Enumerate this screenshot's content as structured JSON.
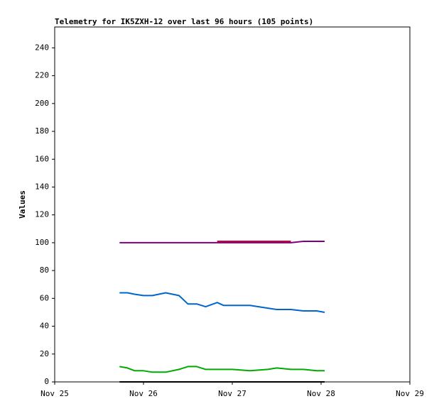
{
  "chart_data": {
    "type": "line",
    "title": "Telemetry for IK5ZXH-12 over last 96 hours (105 points)",
    "y_label": "Values",
    "x": [
      0.73,
      0.82,
      0.9,
      1.0,
      1.1,
      1.25,
      1.4,
      1.5,
      1.6,
      1.7,
      1.83,
      1.9,
      2.0,
      2.2,
      2.4,
      2.5,
      2.66,
      2.8,
      2.95,
      3.04
    ],
    "series": [
      {
        "color": "#800080",
        "values": [
          100,
          100,
          100,
          100,
          100,
          100,
          100,
          100,
          100,
          100,
          100,
          100,
          100,
          100,
          100,
          100,
          100,
          101,
          101,
          101
        ]
      },
      {
        "color": "#cc0033",
        "values": [
          null,
          null,
          null,
          null,
          null,
          null,
          null,
          null,
          null,
          null,
          101,
          101,
          101,
          101,
          101,
          101,
          101,
          null,
          null,
          null
        ]
      },
      {
        "color": "#0066cc",
        "values": [
          64,
          64,
          63,
          62,
          62,
          64,
          62,
          56,
          56,
          54,
          57,
          55,
          55,
          55,
          53,
          52,
          52,
          51,
          51,
          50
        ]
      },
      {
        "color": "#00aa00",
        "values": [
          11,
          10,
          8,
          8,
          7,
          7,
          9,
          11,
          11,
          9,
          9,
          9,
          9,
          8,
          9,
          10,
          9,
          9,
          8,
          8
        ]
      },
      {
        "color": "#000000",
        "values": [
          0,
          0,
          0,
          0,
          0,
          0,
          0,
          0,
          0,
          0,
          0,
          0,
          0,
          0,
          0,
          0,
          0,
          0,
          0,
          0
        ]
      }
    ],
    "xlim": [
      0,
      4
    ],
    "xticks": [
      {
        "value": 0,
        "label": "Nov 25"
      },
      {
        "value": 1,
        "label": "Nov 26"
      },
      {
        "value": 2,
        "label": "Nov 27"
      },
      {
        "value": 3,
        "label": "Nov 28"
      },
      {
        "value": 4,
        "label": "Nov 29"
      }
    ],
    "ylim": [
      0,
      255
    ],
    "yticks": [
      0,
      20,
      40,
      60,
      80,
      100,
      120,
      140,
      160,
      180,
      200,
      220,
      240
    ],
    "grid": false
  }
}
